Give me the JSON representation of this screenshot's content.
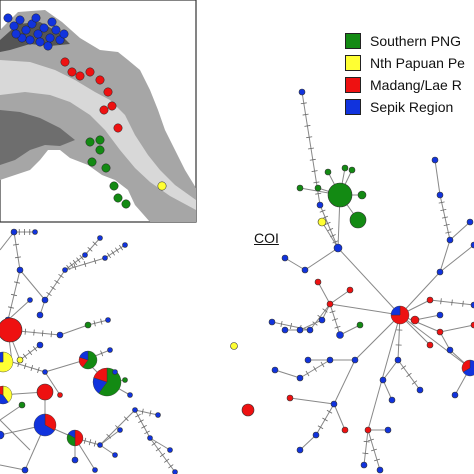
{
  "legend": {
    "items": [
      {
        "label": "Southern PNG",
        "color": "#138a13"
      },
      {
        "label": "Nth Papuan Pe",
        "color": "#ffff33"
      },
      {
        "label": "Madang/Lae R",
        "color": "#ee1111"
      },
      {
        "label": "Sepik Region",
        "color": "#1133dd"
      }
    ]
  },
  "network_label": "COI",
  "colors": {
    "southern": "#138a13",
    "north_papuan": "#ffff33",
    "madang_lae": "#ee1111",
    "sepik": "#1133dd",
    "map_land": "#a8a8a8",
    "map_sea": "#ffffff",
    "edge": "#888888"
  }
}
